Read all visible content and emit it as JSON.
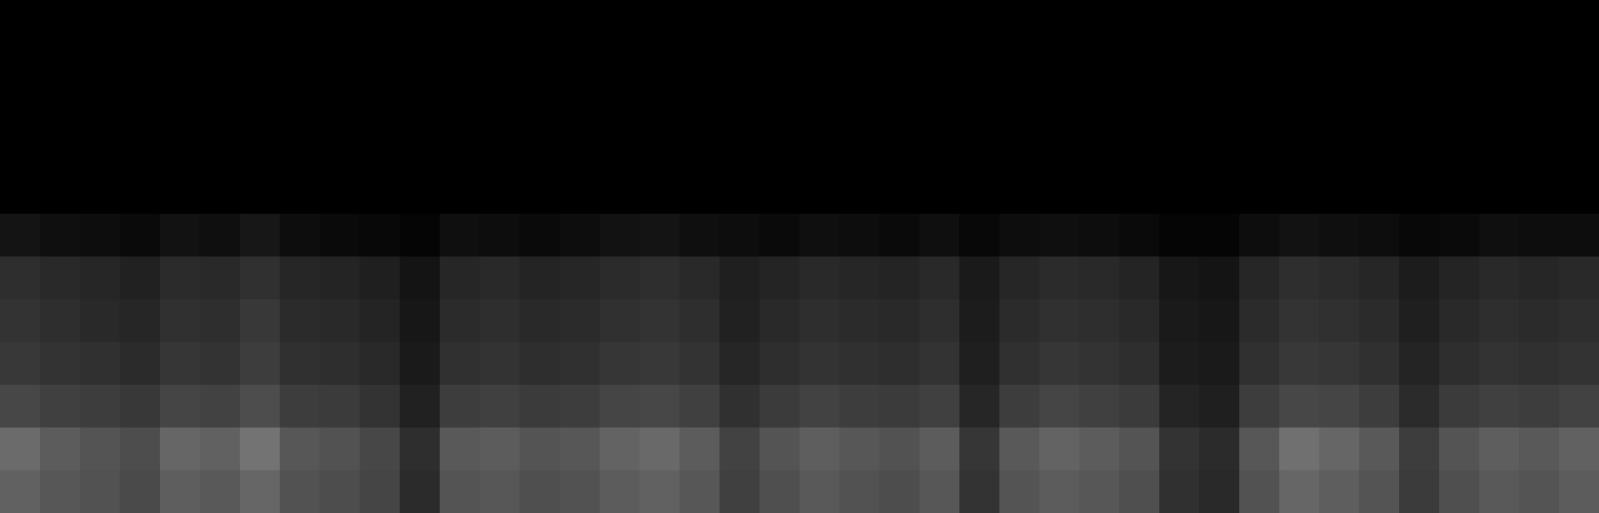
{
  "chart_data": {
    "type": "heatmap",
    "tick_labels": false,
    "zlim": [
      0,
      100
    ],
    "cells": [
      [
        0,
        0,
        0,
        0,
        0,
        0,
        0,
        0,
        0,
        0,
        0,
        0,
        0,
        0,
        0,
        0,
        0,
        0,
        0,
        0,
        0,
        0,
        0,
        0,
        0,
        0,
        0,
        0,
        0,
        0,
        0,
        0,
        0,
        0,
        0,
        0,
        0,
        0,
        0,
        0
      ],
      [
        0,
        0,
        0,
        0,
        0,
        0,
        0,
        0,
        0,
        0,
        0,
        0,
        0,
        0,
        0,
        0,
        0,
        0,
        0,
        0,
        0,
        0,
        0,
        0,
        0,
        0,
        0,
        0,
        0,
        0,
        0,
        0,
        0,
        0,
        0,
        0,
        0,
        0,
        0,
        0
      ],
      [
        0,
        0,
        0,
        0,
        0,
        0,
        0,
        0,
        0,
        0,
        0,
        0,
        0,
        0,
        0,
        0,
        0,
        0,
        0,
        0,
        0,
        0,
        0,
        0,
        0,
        0,
        0,
        0,
        0,
        0,
        0,
        0,
        0,
        0,
        0,
        0,
        0,
        0,
        0,
        0
      ],
      [
        0,
        0,
        0,
        0,
        0,
        0,
        0,
        0,
        0,
        0,
        0,
        0,
        0,
        0,
        0,
        0,
        0,
        0,
        0,
        0,
        0,
        0,
        0,
        0,
        0,
        0,
        0,
        0,
        0,
        0,
        0,
        0,
        0,
        0,
        0,
        0,
        0,
        0,
        0,
        0
      ],
      [
        0,
        0,
        0,
        0,
        0,
        0,
        0,
        0,
        0,
        0,
        0,
        0,
        0,
        0,
        0,
        0,
        0,
        0,
        0,
        0,
        0,
        0,
        0,
        0,
        0,
        0,
        0,
        0,
        0,
        0,
        0,
        0,
        0,
        0,
        0,
        0,
        0,
        0,
        0,
        0
      ],
      [
        8,
        6,
        5,
        4,
        7,
        6,
        9,
        5,
        4,
        3,
        2,
        6,
        5,
        4,
        5,
        7,
        8,
        6,
        5,
        4,
        6,
        5,
        4,
        6,
        3,
        5,
        6,
        5,
        4,
        2,
        2,
        5,
        7,
        6,
        5,
        3,
        4,
        6,
        5,
        5
      ],
      [
        18,
        16,
        15,
        13,
        17,
        16,
        19,
        15,
        14,
        12,
        8,
        15,
        16,
        14,
        15,
        17,
        18,
        16,
        12,
        14,
        16,
        15,
        14,
        16,
        10,
        15,
        17,
        16,
        14,
        9,
        8,
        15,
        18,
        17,
        15,
        11,
        14,
        16,
        15,
        16
      ],
      [
        20,
        18,
        16,
        15,
        19,
        18,
        22,
        17,
        16,
        14,
        9,
        17,
        18,
        16,
        17,
        19,
        20,
        18,
        13,
        16,
        18,
        17,
        16,
        18,
        11,
        17,
        19,
        18,
        16,
        10,
        9,
        17,
        20,
        19,
        17,
        12,
        16,
        18,
        17,
        18
      ],
      [
        22,
        20,
        19,
        17,
        21,
        20,
        24,
        19,
        18,
        16,
        10,
        19,
        20,
        18,
        19,
        21,
        22,
        20,
        15,
        18,
        20,
        19,
        18,
        20,
        12,
        19,
        21,
        20,
        18,
        11,
        10,
        19,
        22,
        21,
        19,
        14,
        18,
        20,
        19,
        20
      ],
      [
        28,
        25,
        24,
        22,
        27,
        26,
        30,
        24,
        23,
        20,
        13,
        24,
        25,
        23,
        24,
        27,
        28,
        25,
        19,
        23,
        26,
        24,
        23,
        25,
        15,
        24,
        27,
        25,
        23,
        14,
        12,
        24,
        28,
        27,
        24,
        17,
        23,
        25,
        24,
        26
      ],
      [
        42,
        36,
        33,
        30,
        40,
        38,
        45,
        34,
        32,
        28,
        18,
        35,
        36,
        33,
        34,
        39,
        41,
        36,
        26,
        33,
        37,
        34,
        32,
        36,
        21,
        35,
        39,
        36,
        33,
        20,
        17,
        34,
        44,
        40,
        35,
        24,
        33,
        37,
        35,
        38
      ],
      [
        38,
        34,
        32,
        29,
        37,
        35,
        40,
        32,
        30,
        27,
        17,
        33,
        34,
        31,
        32,
        36,
        38,
        34,
        25,
        31,
        35,
        32,
        30,
        34,
        20,
        33,
        36,
        34,
        31,
        19,
        16,
        32,
        40,
        37,
        33,
        23,
        31,
        35,
        33,
        36
      ]
    ]
  }
}
